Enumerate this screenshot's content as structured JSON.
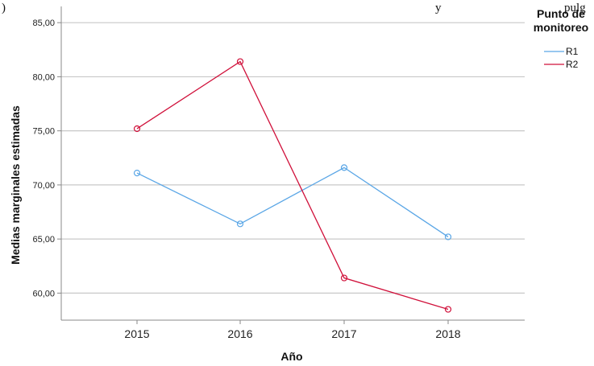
{
  "top_fragment": ") ",
  "top_fragment_right": "y",
  "top_fragment_far_right": "pulg",
  "chart_data": {
    "type": "line",
    "x": [
      "2015",
      "2016",
      "2017",
      "2018"
    ],
    "series": [
      {
        "name": "R1",
        "color": "#5aa6e6",
        "values": [
          71.1,
          66.4,
          71.6,
          65.2
        ]
      },
      {
        "name": "R2",
        "color": "#d0103a",
        "values": [
          75.2,
          81.4,
          61.4,
          58.5
        ]
      }
    ],
    "xlabel": "Año",
    "ylabel": "Medias marginales estimadas",
    "ylim": [
      57.5,
      86.5
    ],
    "yticks": [
      "60,00",
      "65,00",
      "70,00",
      "75,00",
      "80,00",
      "85,00"
    ],
    "ytick_values": [
      60,
      65,
      70,
      75,
      80,
      85
    ],
    "grid": "horizontal",
    "legend": {
      "title_line1": "Punto de",
      "title_line2": "monitoreo",
      "placement": "right"
    }
  }
}
